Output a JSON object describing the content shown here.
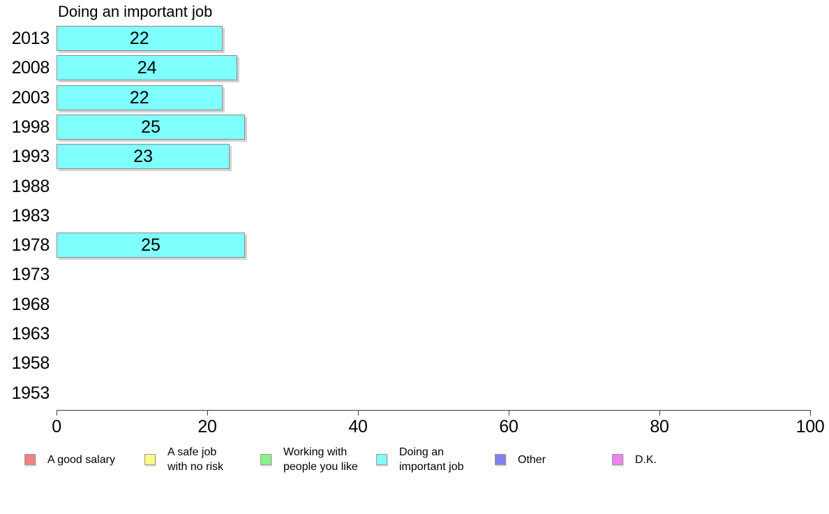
{
  "chart_data": {
    "type": "bar",
    "orientation": "horizontal",
    "title": "Doing an important job",
    "categories": [
      "2013",
      "2008",
      "2003",
      "1998",
      "1993",
      "1988",
      "1983",
      "1978",
      "1973",
      "1968",
      "1963",
      "1958",
      "1953"
    ],
    "series": [
      {
        "name": "Doing an important job",
        "color": "#80ffff",
        "values": [
          22,
          24,
          22,
          25,
          23,
          null,
          null,
          25,
          null,
          null,
          null,
          null,
          null
        ]
      }
    ],
    "bar_labels_shown": true,
    "xlabel": "",
    "ylabel": "",
    "xlim": [
      0,
      100
    ],
    "x_ticks": [
      0,
      20,
      40,
      60,
      80,
      100
    ],
    "grid": false,
    "legend_position": "bottom"
  },
  "legend": {
    "items": [
      {
        "label": "A good salary",
        "color": "#f58080"
      },
      {
        "label": "A safe job\nwith no risk",
        "color": "#fafa87"
      },
      {
        "label": "Working with\npeople you like",
        "color": "#87f287"
      },
      {
        "label": "Doing an\nimportant job",
        "color": "#80ffff"
      },
      {
        "label": "Other",
        "color": "#8080f2"
      },
      {
        "label": "D.K.",
        "color": "#f280f2"
      }
    ]
  }
}
